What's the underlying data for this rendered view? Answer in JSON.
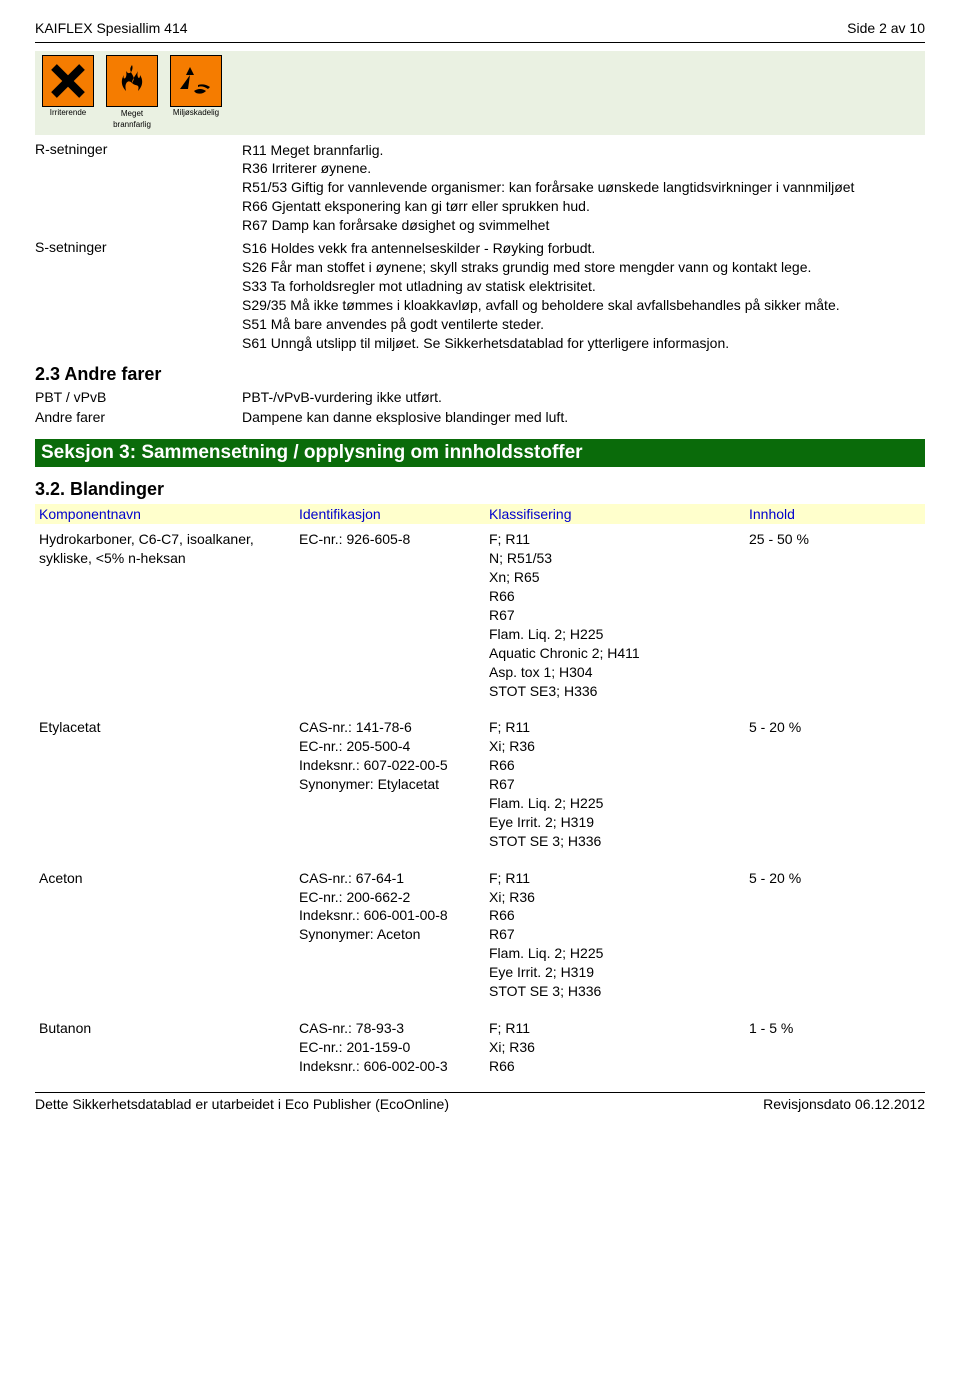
{
  "header": {
    "product": "KAIFLEX Spesiallim 414",
    "page": "Side 2 av 10"
  },
  "hazard": {
    "labels": [
      "Irriterende",
      "Meget\nbrannfarlig",
      "Miljøskadelig"
    ]
  },
  "r_setninger_label": "R-setninger",
  "r_setninger": "R11 Meget brannfarlig.\nR36 Irriterer øynene.\nR51/53 Giftig for vannlevende organismer: kan forårsake uønskede langtidsvirkninger i vannmiljøet\nR66 Gjentatt eksponering kan gi tørr eller sprukken hud.\nR67 Damp kan forårsake døsighet og svimmelhet",
  "s_setninger_label": "S-setninger",
  "s_setninger": "S16 Holdes vekk fra antennelseskilder - Røyking forbudt.\nS26 Får man stoffet i øynene; skyll straks grundig med store mengder vann og kontakt lege.\nS33 Ta forholdsregler mot utladning av statisk elektrisitet.\nS29/35 Må ikke tømmes i kloakkavløp, avfall og beholdere skal avfallsbehandles på sikker måte.\nS51 Må bare anvendes på godt ventilerte steder.\nS61 Unngå utslipp til miljøet. Se Sikkerhetsdatablad for ytterligere informasjon.",
  "section_2_3": "2.3 Andre farer",
  "pbt_label": "PBT / vPvB",
  "pbt_value": "PBT-/vPvB-vurdering ikke utført.",
  "andre_label": "Andre farer",
  "andre_value": "Dampene kan danne eksplosive blandinger med luft.",
  "section3_title": "Seksjon 3: Sammensetning / opplysning om innholdsstoffer",
  "section_3_2": "3.2. Blandinger",
  "table_headers": {
    "col1": "Komponentnavn",
    "col2": "Identifikasjon",
    "col3": "Klassifisering",
    "col4": "Innhold"
  },
  "components": [
    {
      "name": "Hydrokarboner, C6-C7, isoalkaner, sykliske, <5% n-heksan",
      "ident": "EC-nr.: 926-605-8",
      "klass": "F; R11\nN; R51/53\nXn; R65\nR66\nR67\nFlam. Liq. 2; H225\nAquatic Chronic 2; H411\nAsp. tox 1; H304\nSTOT SE3; H336",
      "innhold": "25 - 50 %"
    },
    {
      "name": "Etylacetat",
      "ident": "CAS-nr.: 141-78-6\nEC-nr.: 205-500-4\nIndeksnr.: 607-022-00-5\nSynonymer: Etylacetat",
      "klass": "F; R11\nXi; R36\nR66\nR67\nFlam. Liq. 2; H225\nEye Irrit. 2; H319\nSTOT SE 3; H336",
      "innhold": "5 - 20 %"
    },
    {
      "name": "Aceton",
      "ident": "CAS-nr.: 67-64-1\nEC-nr.: 200-662-2\nIndeksnr.: 606-001-00-8\nSynonymer: Aceton",
      "klass": "F; R11\nXi; R36\nR66\nR67\nFlam. Liq. 2; H225\nEye Irrit. 2; H319\nSTOT SE 3; H336",
      "innhold": "5 - 20 %"
    },
    {
      "name": "Butanon",
      "ident": "CAS-nr.: 78-93-3\nEC-nr.: 201-159-0\nIndeksnr.: 606-002-00-3",
      "klass": "F; R11\nXi; R36\nR66",
      "innhold": "1 - 5 %"
    }
  ],
  "footer": {
    "left": "Dette Sikkerhetsdatablad er utarbeidet i Eco Publisher (EcoOnline)",
    "right": "Revisjonsdato 06.12.2012"
  }
}
